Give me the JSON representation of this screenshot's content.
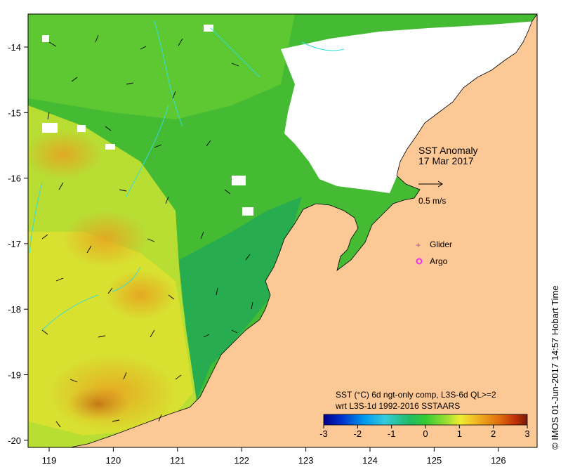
{
  "map": {
    "title_line1": "SST Anomaly",
    "title_line2": "17 Mar 2017",
    "vector_scale_label": "0.5 m/s",
    "legend": [
      {
        "label": "Glider",
        "symbol": "plus",
        "color": "#cc33cc"
      },
      {
        "label": "Argo",
        "symbol": "circle",
        "color": "#ee33ee"
      }
    ],
    "caption_line1": "SST (°C) 6d ngt-only comp, L3S-6d QL>=2",
    "caption_line2": "wrt L3S-1d 1992-2016 SSTAARS",
    "credit": "© IMOS 01-Jun-2017 14:57 Hobart Time",
    "lon_ticks": [
      "119",
      "120",
      "121",
      "122",
      "123",
      "124",
      "125",
      "126"
    ],
    "lat_ticks": [
      "-14",
      "-15",
      "-16",
      "-17",
      "-18",
      "-19",
      "-20"
    ],
    "colorbar": {
      "ticks": [
        "-3",
        "-2",
        "-1",
        "0",
        "1",
        "2",
        "3"
      ],
      "range": [
        -3,
        3
      ],
      "colors": [
        "#00008b",
        "#0033cc",
        "#0099ee",
        "#33ccdd",
        "#22bb66",
        "#33cc33",
        "#99dd33",
        "#eeee33",
        "#f0b020",
        "#e07010",
        "#c03008",
        "#7a1a08"
      ]
    },
    "colors": {
      "land": "#fcc896",
      "no_data": "#ffffff",
      "current_line": "#33dddd"
    }
  }
}
